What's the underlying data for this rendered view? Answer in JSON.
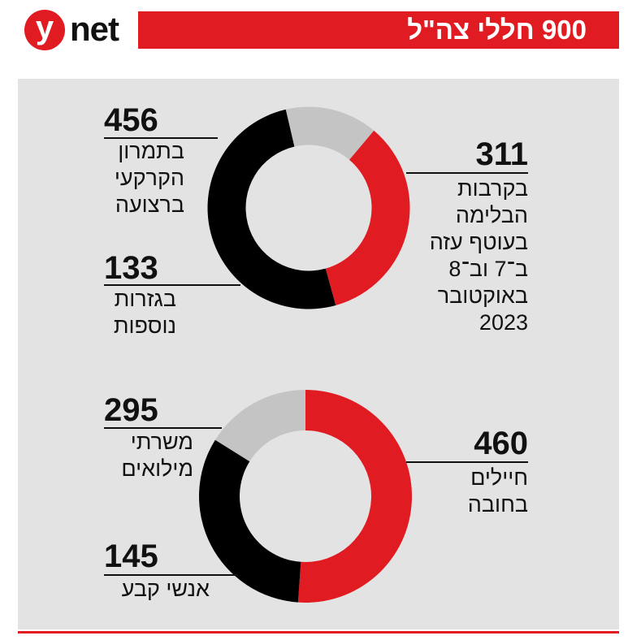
{
  "logo": {
    "letter": "y",
    "text": "net"
  },
  "title": "900 חללי צה\"ל",
  "colors": {
    "red": "#e11b22",
    "black": "#000000",
    "gray": "#c4c4c4",
    "bg": "#e3e3e3"
  },
  "chart_data": [
    {
      "type": "pie",
      "categories": [
        "בקרבות הבלימה בעוטף עזה ב־7 וב־8 באוקטובר 2023",
        "בתמרון הקרקעי ברצועה",
        "בגזרות נוספות"
      ],
      "values": [
        311,
        456,
        133
      ],
      "series_colors": [
        "#e11b22",
        "#000000",
        "#c4c4c4"
      ],
      "annotations": [
        {
          "value_text": "311",
          "label": "בקרבות\nהבלימה\nבעוטף עזה\nב־7 וב־8\nבאוקטובר\n2023"
        },
        {
          "value_text": "456",
          "label": "בתמרון\nהקרקעי\nברצועה"
        },
        {
          "value_text": "133",
          "label": "בגזרות\nנוספות"
        }
      ]
    },
    {
      "type": "pie",
      "categories": [
        "חיילים בחובה",
        "משרתי מילואים",
        "אנשי קבע"
      ],
      "values": [
        460,
        295,
        145
      ],
      "series_colors": [
        "#e11b22",
        "#000000",
        "#c4c4c4"
      ],
      "annotations": [
        {
          "value_text": "460",
          "label": "חיילים\nבחובה"
        },
        {
          "value_text": "295",
          "label": "משרתי\nמילואים"
        },
        {
          "value_text": "145",
          "label": "אנשי קבע"
        }
      ]
    }
  ]
}
